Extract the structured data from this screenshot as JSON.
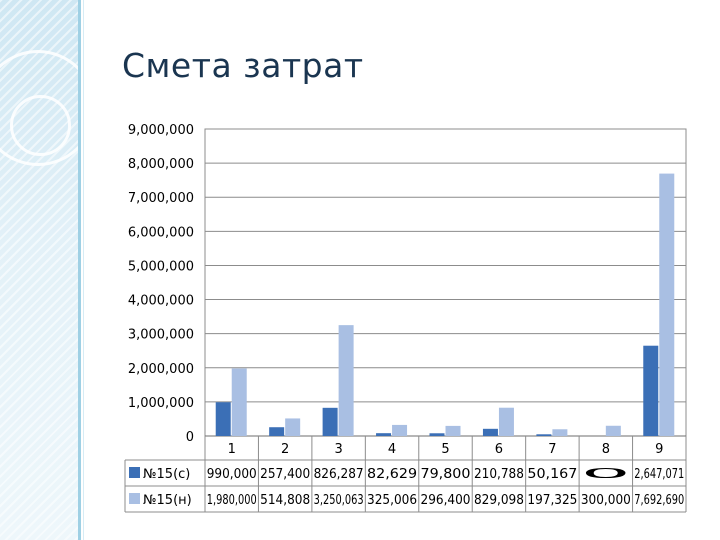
{
  "slide": {
    "title": "Смета затрат"
  },
  "chart_data": {
    "type": "bar",
    "categories": [
      "1",
      "2",
      "3",
      "4",
      "5",
      "6",
      "7",
      "8",
      "9"
    ],
    "ylim": [
      0,
      9000000
    ],
    "yticks": [
      "0",
      "1,000,000",
      "2,000,000",
      "3,000,000",
      "4,000,000",
      "5,000,000",
      "6,000,000",
      "7,000,000",
      "8,000,000",
      "9,000,000"
    ],
    "grid": true,
    "legend": "data-table below plot",
    "series": [
      {
        "name": "№15(с)",
        "color": "#3b6fb6",
        "values": [
          990000,
          257400,
          826287,
          82629,
          79800,
          210788,
          50167,
          0,
          2647071
        ],
        "labels": [
          "990,000",
          "257,400",
          "826,287",
          "82,629",
          "79,800",
          "210,788",
          "50,167",
          "0",
          "2,647,071"
        ]
      },
      {
        "name": "№15(н)",
        "color": "#a9bfe3",
        "values": [
          1980000,
          514808,
          3250063,
          325006,
          296400,
          829098,
          197325,
          300000,
          7692690
        ],
        "labels": [
          "1,980,000",
          "514,808",
          "3,250,063",
          "325,006",
          "296,400",
          "829,098",
          "197,325",
          "300,000",
          "7,692,690"
        ]
      }
    ]
  }
}
